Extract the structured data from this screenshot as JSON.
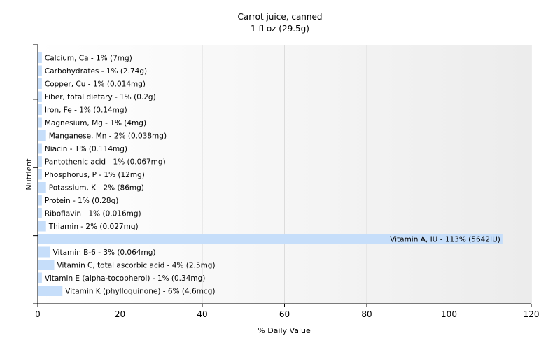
{
  "chart_data": {
    "type": "bar",
    "orientation": "horizontal",
    "title": "Carrot juice, canned",
    "subtitle": "1 fl oz (29.5g)",
    "xlabel": "% Daily Value",
    "ylabel": "Nutrient",
    "xlim": [
      0,
      120
    ],
    "xticks": [
      "0",
      "20",
      "40",
      "60",
      "80",
      "100",
      "120"
    ],
    "grid": true,
    "categories": [
      "Calcium, Ca",
      "Carbohydrates",
      "Copper, Cu",
      "Fiber, total dietary",
      "Iron, Fe",
      "Magnesium, Mg",
      "Manganese, Mn",
      "Niacin",
      "Pantothenic acid",
      "Phosphorus, P",
      "Potassium, K",
      "Protein",
      "Riboflavin",
      "Thiamin",
      "Vitamin A, IU",
      "Vitamin B-6",
      "Vitamin C, total ascorbic acid",
      "Vitamin E (alpha-tocopherol)",
      "Vitamin K (phylloquinone)"
    ],
    "values": [
      1,
      1,
      1,
      1,
      1,
      1,
      2,
      1,
      1,
      1,
      2,
      1,
      1,
      2,
      113,
      3,
      4,
      1,
      6
    ],
    "labels": [
      "Calcium, Ca - 1% (7mg)",
      "Carbohydrates - 1% (2.74g)",
      "Copper, Cu - 1% (0.014mg)",
      "Fiber, total dietary - 1% (0.2g)",
      "Iron, Fe - 1% (0.14mg)",
      "Magnesium, Mg - 1% (4mg)",
      "Manganese, Mn - 2% (0.038mg)",
      "Niacin - 1% (0.114mg)",
      "Pantothenic acid - 1% (0.067mg)",
      "Phosphorus, P - 1% (12mg)",
      "Potassium, K - 2% (86mg)",
      "Protein - 1% (0.28g)",
      "Riboflavin - 1% (0.016mg)",
      "Thiamin - 2% (0.027mg)",
      "Vitamin A, IU - 113% (5642IU)",
      "Vitamin B-6 - 3% (0.064mg)",
      "Vitamin C, total ascorbic acid - 4% (2.5mg)",
      "Vitamin E (alpha-tocopherol) - 1% (0.34mg)",
      "Vitamin K (phylloquinone) - 6% (4.6mcg)"
    ],
    "bar_color": "#c6defa"
  }
}
